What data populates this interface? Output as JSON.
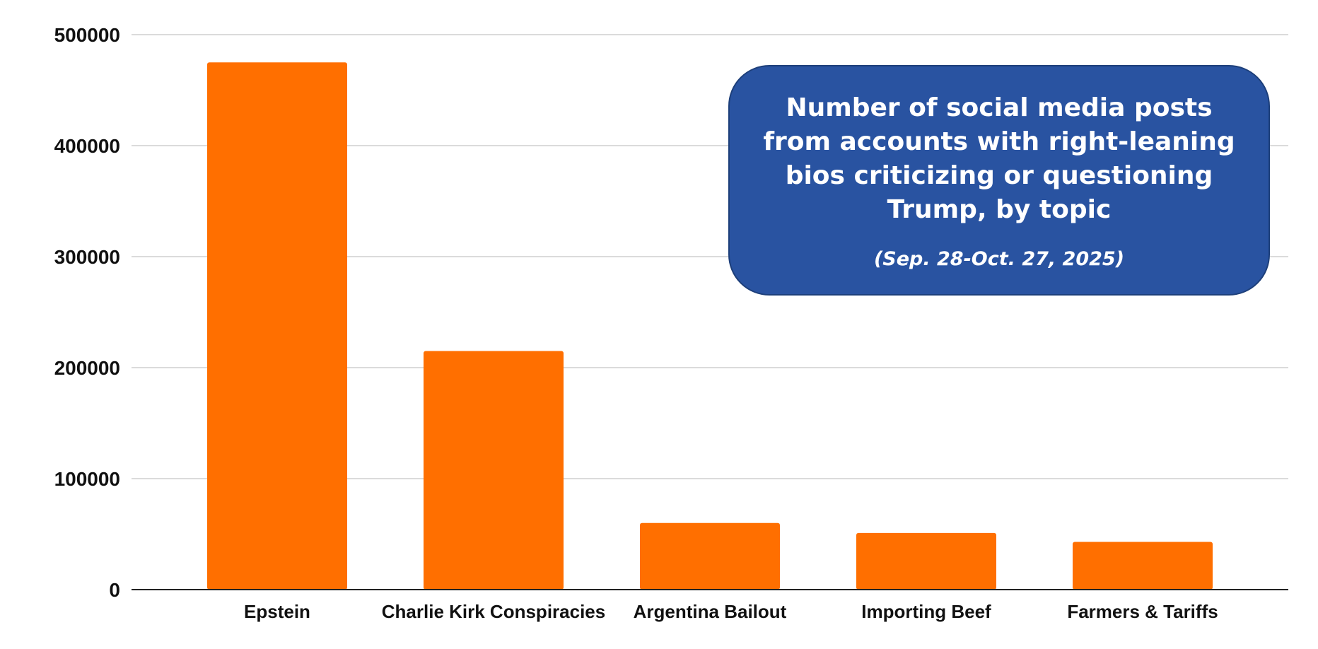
{
  "colors": {
    "bar": "#ff6f00",
    "title_box": "#2953a1",
    "gridline": "#cfcfcf",
    "axis": "#222222",
    "title_text": "#ffffff"
  },
  "chart_data": {
    "type": "bar",
    "title": "Number of social media posts from accounts with right-leaning bios criticizing or questioning Trump, by topic",
    "subtitle": "(Sep. 28-Oct. 27, 2025)",
    "categories": [
      "Epstein",
      "Charlie Kirk Conspiracies",
      "Argentina Bailout",
      "Importing Beef",
      "Farmers & Tariffs"
    ],
    "values": [
      475000,
      215000,
      60000,
      51000,
      43000
    ],
    "xlabel": "",
    "ylabel": "",
    "ylim": [
      0,
      500000
    ],
    "yticks": [
      "0",
      "100000",
      "200000",
      "300000",
      "400000",
      "500000"
    ],
    "grid": true,
    "legend": "none"
  }
}
